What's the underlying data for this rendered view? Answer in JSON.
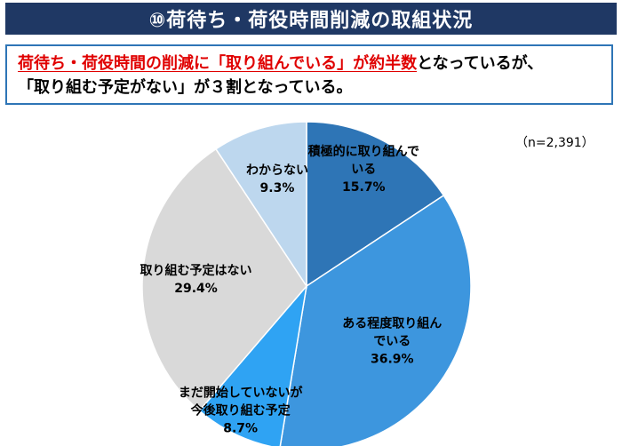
{
  "title": "⑩荷待ち・荷役時間削減の取組状況",
  "summary": {
    "part1": "荷待ち・荷役時間の削減に「取り組んでいる」が約半数",
    "part2": "となっているが、",
    "line2": "「取り組む予定がない」が３割となっている。"
  },
  "sample_size": "（n=2,391）",
  "colors": {
    "title_bg": "#1f3864",
    "border": "#2e75b6",
    "highlight": "#e00000"
  },
  "chart_data": {
    "type": "pie",
    "title": "",
    "start": "top",
    "direction": "clockwise",
    "slices": [
      {
        "label_lines": [
          "積極的に取り組んで",
          "いる"
        ],
        "value": 15.7,
        "value_text": "15.7%",
        "color": "#2e75b6"
      },
      {
        "label_lines": [
          "ある程度取り組ん",
          "でいる"
        ],
        "value": 36.9,
        "value_text": "36.9%",
        "color": "#3d96de"
      },
      {
        "label_lines": [
          "まだ開始していないが",
          "今後取り組む予定"
        ],
        "value": 8.7,
        "value_text": "8.7%",
        "color": "#2fa3f3"
      },
      {
        "label_lines": [
          "取り組む予定はない"
        ],
        "value": 29.4,
        "value_text": "29.4%",
        "color": "#d9d9d9"
      },
      {
        "label_lines": [
          "わからない"
        ],
        "value": 9.3,
        "value_text": "9.3%",
        "color": "#bdd7ee"
      }
    ]
  }
}
